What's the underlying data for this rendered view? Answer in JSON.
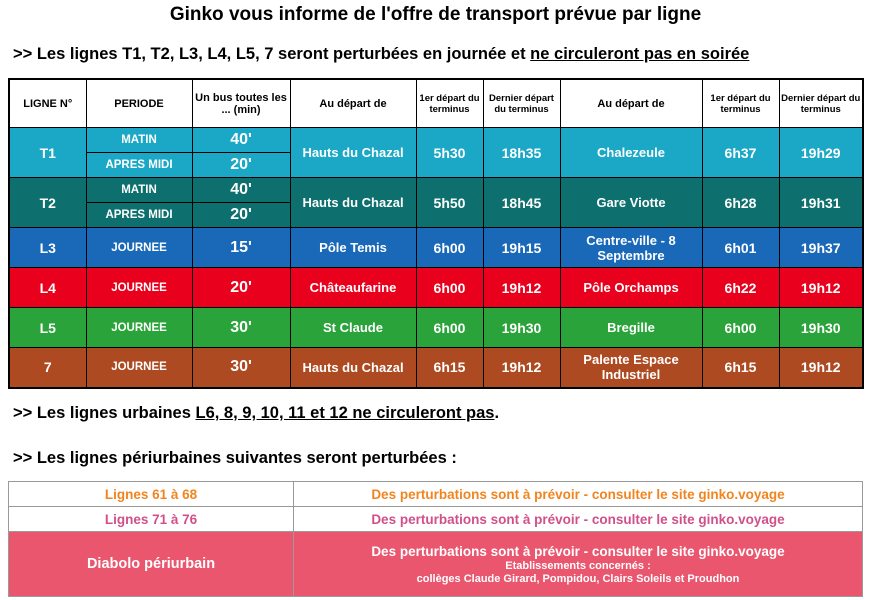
{
  "title": "Ginko vous informe de l'offre de transport prévue par ligne",
  "section1": {
    "prefix": ">> Les lignes T1, T2, L3, L4, L5, 7 seront perturbées en journée et ",
    "underlined": "ne circuleront pas en soirée"
  },
  "table": {
    "headers": {
      "ligne": "LIGNE N°",
      "periode": "PERIODE",
      "frequence": "Un bus toutes les ... (min)",
      "depart1": "Au départ de",
      "premier1": "1er départ du terminus",
      "dernier1": "Dernier départ du terminus",
      "depart2": "Au départ de",
      "premier2": "1er départ du terminus",
      "dernier2": "Dernier départ du terminus"
    },
    "rows": [
      {
        "line": "T1",
        "periods": [
          {
            "name": "MATIN",
            "freq": "40'"
          },
          {
            "name": "APRES MIDI",
            "freq": "20'"
          }
        ],
        "stop1": "Hauts du Chazal",
        "first1": "5h30",
        "last1": "18h35",
        "stop2": "Chalezeule",
        "first2": "6h37",
        "last2": "19h29",
        "color": "#1ba8c7"
      },
      {
        "line": "T2",
        "periods": [
          {
            "name": "MATIN",
            "freq": "40'"
          },
          {
            "name": "APRES MIDI",
            "freq": "20'"
          }
        ],
        "stop1": "Hauts du Chazal",
        "first1": "5h50",
        "last1": "18h45",
        "stop2": "Gare Viotte",
        "first2": "6h28",
        "last2": "19h31",
        "color": "#0d6f6e"
      },
      {
        "line": "L3",
        "periods": [
          {
            "name": "JOURNEE",
            "freq": "15'"
          }
        ],
        "stop1": "Pôle Temis",
        "first1": "6h00",
        "last1": "19h15",
        "stop2": "Centre-ville - 8 Septembre",
        "first2": "6h01",
        "last2": "19h37",
        "color": "#1a69b9"
      },
      {
        "line": "L4",
        "periods": [
          {
            "name": "JOURNEE",
            "freq": "20'"
          }
        ],
        "stop1": "Châteaufarine",
        "first1": "6h00",
        "last1": "19h12",
        "stop2": "Pôle Orchamps",
        "first2": "6h22",
        "last2": "19h12",
        "color": "#e8001c"
      },
      {
        "line": "L5",
        "periods": [
          {
            "name": "JOURNEE",
            "freq": "30'"
          }
        ],
        "stop1": "St Claude",
        "first1": "6h00",
        "last1": "19h30",
        "stop2": "Bregille",
        "first2": "6h00",
        "last2": "19h30",
        "color": "#2aa33a"
      },
      {
        "line": "7",
        "periods": [
          {
            "name": "JOURNEE",
            "freq": "30'"
          }
        ],
        "stop1": "Hauts du Chazal",
        "first1": "6h15",
        "last1": "19h12",
        "stop2": "Palente Espace Industriel",
        "first2": "6h15",
        "last2": "19h12",
        "color": "#ad4a22"
      }
    ]
  },
  "section2": {
    "prefix": ">> Les lignes urbaines ",
    "underlined": "L6, 8, 9, 10, 11 et 12 ne circuleront pas",
    "suffix": "."
  },
  "section3": {
    "text": ">> Les lignes périurbaines suivantes seront perturbées :"
  },
  "peri": [
    {
      "name": "Lignes 61 à 68",
      "info": "Des perturbations sont à prévoir - consulter le site ginko.voyage",
      "color": "#f0851f"
    },
    {
      "name": "Lignes 71 à 76",
      "info": "Des perturbations sont à prévoir - consulter le site ginko.voyage",
      "color": "#d0508a"
    },
    {
      "name": "Diabolo périurbain",
      "info": "Des perturbations sont à prévoir - consulter le site ginko.voyage",
      "note1": "Etablissements concernés :",
      "note2": "collèges Claude Girard, Pompidou, Clairs Soleils et Proudhon",
      "color": "#e9566e"
    }
  ]
}
